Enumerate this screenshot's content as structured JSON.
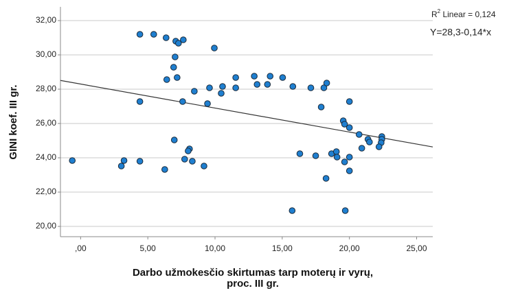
{
  "chart_data": {
    "type": "scatter",
    "xlabel": [
      "Darbo užmokesčio skirtumas tarp moterų ir vyrų,",
      "proc. III gr."
    ],
    "ylabel": "GINI koef. III gr.",
    "annotation": [
      "R",
      "2",
      " Linear = 0,124"
    ],
    "fit": {
      "label": "Y=28,3-0,14*x",
      "intercept": 28.3,
      "slope": -0.14
    },
    "color": "#1f7fd0",
    "grid": true,
    "xlim": [
      -1.5,
      26.2
    ],
    "ylim": [
      19.4,
      32.8
    ],
    "xticks": [
      {
        "value": 0,
        "label": ",00"
      },
      {
        "value": 5,
        "label": "5,00"
      },
      {
        "value": 10,
        "label": "10,00"
      },
      {
        "value": 15,
        "label": "15,00"
      },
      {
        "value": 20,
        "label": "20,00"
      },
      {
        "value": 25,
        "label": "25,00"
      }
    ],
    "yticks": [
      {
        "value": 20,
        "label": "20,00"
      },
      {
        "value": 22,
        "label": "22,00"
      },
      {
        "value": 24,
        "label": "24,00"
      },
      {
        "value": 26,
        "label": "26,00"
      },
      {
        "value": 28,
        "label": "28,00"
      },
      {
        "value": 30,
        "label": "30,00"
      },
      {
        "value": 32,
        "label": "32,00"
      }
    ],
    "x": [
      -0.62,
      3.03,
      3.23,
      4.41,
      5.44,
      6.36,
      7.08,
      7.28,
      7.64,
      9.95,
      7.03,
      6.92,
      6.41,
      7.18,
      4.41,
      7.59,
      8.46,
      9.59,
      9.44,
      10.56,
      10.46,
      11.54,
      11.54,
      12.92,
      13.13,
      13.9,
      14.1,
      15.03,
      15.79,
      17.13,
      18.1,
      18.31,
      17.9,
      20.0,
      19.54,
      19.64,
      20.0,
      20.72,
      21.38,
      21.49,
      22.41,
      22.41,
      22.36,
      22.2,
      20.92,
      6.97,
      6.26,
      8.1,
      8.0,
      7.74,
      8.31,
      9.18,
      4.41,
      16.31,
      17.49,
      18.67,
      19.03,
      19.08,
      19.64,
      20.0,
      20.0,
      18.26,
      15.74,
      19.69
    ],
    "values": [
      23.84,
      23.52,
      23.84,
      31.2,
      31.2,
      31.0,
      30.8,
      30.68,
      30.88,
      30.4,
      29.88,
      29.28,
      28.56,
      28.68,
      27.28,
      27.28,
      27.88,
      28.08,
      27.16,
      28.16,
      27.76,
      28.68,
      28.08,
      28.76,
      28.28,
      28.28,
      28.76,
      28.68,
      28.16,
      28.08,
      28.08,
      28.36,
      26.96,
      27.28,
      26.16,
      25.96,
      25.76,
      25.36,
      25.08,
      24.92,
      25.24,
      25.08,
      24.88,
      24.64,
      24.56,
      25.04,
      23.32,
      24.52,
      24.4,
      23.92,
      23.8,
      23.52,
      23.8,
      24.24,
      24.12,
      24.24,
      24.36,
      24.04,
      23.76,
      24.04,
      23.24,
      22.8,
      20.92,
      20.92
    ]
  }
}
